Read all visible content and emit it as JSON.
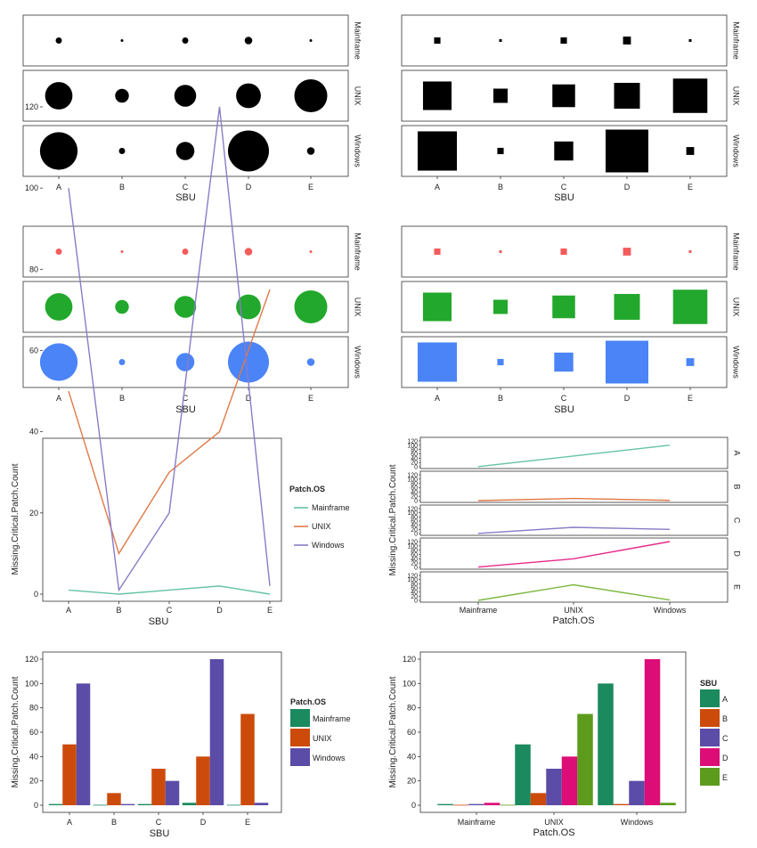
{
  "chart_data": {
    "type": "dashboard",
    "sbu": [
      "A",
      "B",
      "C",
      "D",
      "E"
    ],
    "os": [
      "Mainframe",
      "UNIX",
      "Windows"
    ],
    "values": {
      "Mainframe": [
        1,
        0,
        1,
        2,
        0
      ],
      "UNIX": [
        50,
        10,
        30,
        40,
        75
      ],
      "Windows": [
        100,
        1,
        20,
        120,
        2
      ]
    },
    "os_colors": {
      "Mainframe": "#66c2a5",
      "UNIX": "#e07a47",
      "Windows": "#8a7cc7"
    },
    "facet_colors": {
      "Mainframe": "#f45b5b",
      "UNIX": "#22a82c",
      "Windows": "#4a84f7"
    },
    "dark_os_colors": {
      "Mainframe": "#1b8a5e",
      "UNIX": "#cc4b0b",
      "Windows": "#5b4ca7"
    },
    "sbu_line_colors": {
      "A": "#66c2a5",
      "B": "#e07a47",
      "C": "#8a7cc7",
      "D": "#e7298a",
      "E": "#7cb83f"
    },
    "sbu_bar_colors": {
      "A": "#1b8a5e",
      "B": "#cc4b0b",
      "C": "#5b4ca7",
      "D": "#dd0d78",
      "E": "#5c9b1c"
    },
    "charts": [
      {
        "type": "bubble-facet",
        "marker": "circle",
        "colored": false,
        "xlabel": "SBU"
      },
      {
        "type": "bubble-facet",
        "marker": "square",
        "colored": false,
        "xlabel": "SBU"
      },
      {
        "type": "bubble-facet",
        "marker": "circle",
        "colored": true,
        "xlabel": "SBU"
      },
      {
        "type": "bubble-facet",
        "marker": "square",
        "colored": true,
        "xlabel": "SBU"
      },
      {
        "type": "line",
        "xlabel": "SBU",
        "ylabel": "Missing.Critical.Patch.Count",
        "legend_title": "Patch.OS",
        "ylim": [
          0,
          120
        ],
        "yticks": [
          0,
          20,
          40,
          60,
          80,
          100,
          120
        ]
      },
      {
        "type": "line-facet",
        "xlabel": "Patch.OS",
        "ylabel": "Missing.Critical.Patch.Count",
        "ylim": [
          0,
          120
        ],
        "yticks": [
          0,
          20,
          40,
          60,
          80,
          100,
          120
        ]
      },
      {
        "type": "bar",
        "xlabel": "SBU",
        "ylabel": "Missing.Critical.Patch.Count",
        "legend_title": "Patch.OS",
        "ylim": [
          0,
          120
        ],
        "yticks": [
          0,
          20,
          40,
          60,
          80,
          100,
          120
        ]
      },
      {
        "type": "bar",
        "xlabel": "Patch.OS",
        "ylabel": "Missing.Critical.Patch.Count",
        "legend_title": "SBU",
        "ylim": [
          0,
          120
        ],
        "yticks": [
          0,
          20,
          40,
          60,
          80,
          100,
          120
        ]
      }
    ]
  }
}
